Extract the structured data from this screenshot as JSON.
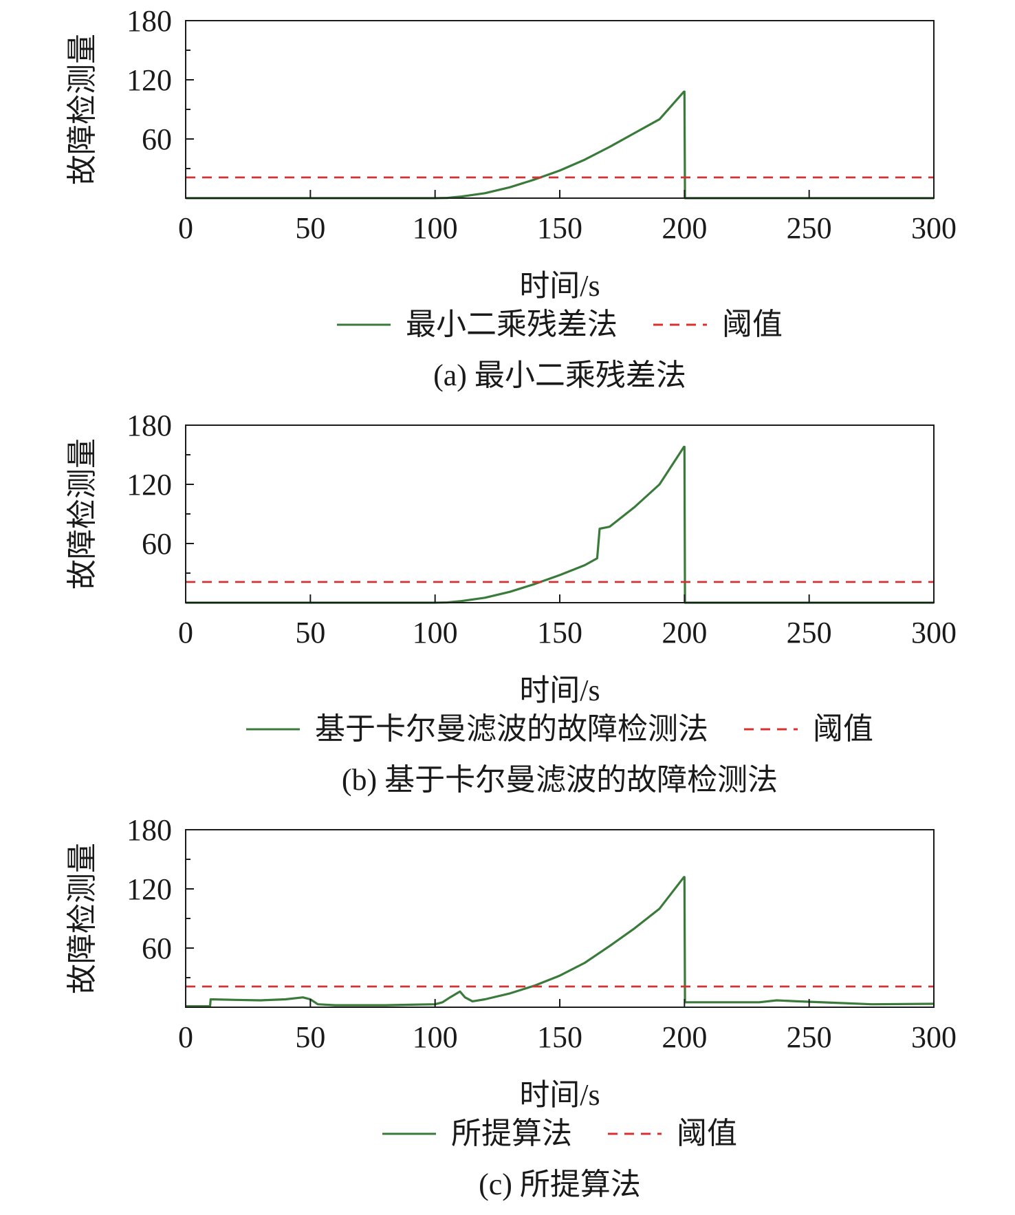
{
  "chart_data": [
    {
      "type": "line",
      "title": "",
      "caption": "(a) 最小二乘残差法",
      "xlabel": "时间/s",
      "ylabel": "故障检测量",
      "xlim": [
        0,
        300
      ],
      "ylim": [
        0,
        180
      ],
      "xticks": [
        0,
        50,
        100,
        150,
        200,
        250,
        300
      ],
      "yticks": [
        60,
        120,
        180
      ],
      "legend_position": "below",
      "series": [
        {
          "name": "最小二乘残差法",
          "style": "solid",
          "color": "#3a7a3a",
          "x": [
            0,
            50,
            100,
            105,
            110,
            120,
            130,
            140,
            150,
            160,
            170,
            180,
            190,
            199.8,
            200,
            200.2,
            250,
            300
          ],
          "y": [
            0,
            0,
            0,
            0.3,
            1.5,
            5,
            11,
            19,
            28,
            39,
            52,
            66,
            80,
            108,
            108,
            0,
            0,
            0
          ]
        },
        {
          "name": "阈值",
          "style": "dashed",
          "color": "#d63030",
          "x": [
            0,
            300
          ],
          "y": [
            21,
            21
          ]
        }
      ]
    },
    {
      "type": "line",
      "title": "",
      "caption": "(b) 基于卡尔曼滤波的故障检测法",
      "xlabel": "时间/s",
      "ylabel": "故障检测量",
      "xlim": [
        0,
        300
      ],
      "ylim": [
        0,
        180
      ],
      "xticks": [
        0,
        50,
        100,
        150,
        200,
        250,
        300
      ],
      "yticks": [
        60,
        120,
        180
      ],
      "legend_position": "below",
      "series": [
        {
          "name": "基于卡尔曼滤波的故障检测法",
          "style": "solid",
          "color": "#3a7a3a",
          "x": [
            0,
            50,
            100,
            105,
            110,
            120,
            130,
            140,
            150,
            160,
            165,
            166,
            168,
            170,
            180,
            190,
            199.8,
            200,
            200.2,
            250,
            300
          ],
          "y": [
            0,
            0,
            0,
            0.3,
            1.5,
            5,
            11,
            19,
            28,
            38,
            45,
            75,
            76,
            77,
            97,
            120,
            158,
            158,
            0,
            0,
            0
          ]
        },
        {
          "name": "阈值",
          "style": "dashed",
          "color": "#d63030",
          "x": [
            0,
            300
          ],
          "y": [
            21,
            21
          ]
        }
      ]
    },
    {
      "type": "line",
      "title": "",
      "caption": "(c) 所提算法",
      "xlabel": "时间/s",
      "ylabel": "故障检测量",
      "xlim": [
        0,
        300
      ],
      "ylim": [
        0,
        180
      ],
      "xticks": [
        0,
        50,
        100,
        150,
        200,
        250,
        300
      ],
      "yticks": [
        60,
        120,
        180
      ],
      "legend_position": "below",
      "series": [
        {
          "name": "所提算法",
          "style": "solid",
          "color": "#3a7a3a",
          "x": [
            0,
            9.8,
            10,
            20,
            30,
            40,
            47,
            50,
            53,
            60,
            70,
            80,
            90,
            100,
            103,
            106,
            110,
            112,
            115,
            120,
            130,
            140,
            150,
            160,
            170,
            180,
            190,
            199.8,
            200,
            200.2,
            210,
            220,
            230,
            237,
            245,
            260,
            275,
            300
          ],
          "y": [
            1,
            1,
            8,
            7.5,
            7,
            8,
            10,
            8,
            3,
            2,
            2,
            2,
            2.5,
            3,
            5,
            10,
            16,
            10,
            6,
            8,
            14,
            22,
            32,
            45,
            62,
            80,
            100,
            132,
            132,
            5,
            5,
            5,
            5,
            7,
            6,
            4.5,
            3,
            3.5
          ]
        },
        {
          "name": "阈值",
          "style": "dashed",
          "color": "#d63030",
          "x": [
            0,
            300
          ],
          "y": [
            21,
            21
          ]
        }
      ]
    }
  ]
}
